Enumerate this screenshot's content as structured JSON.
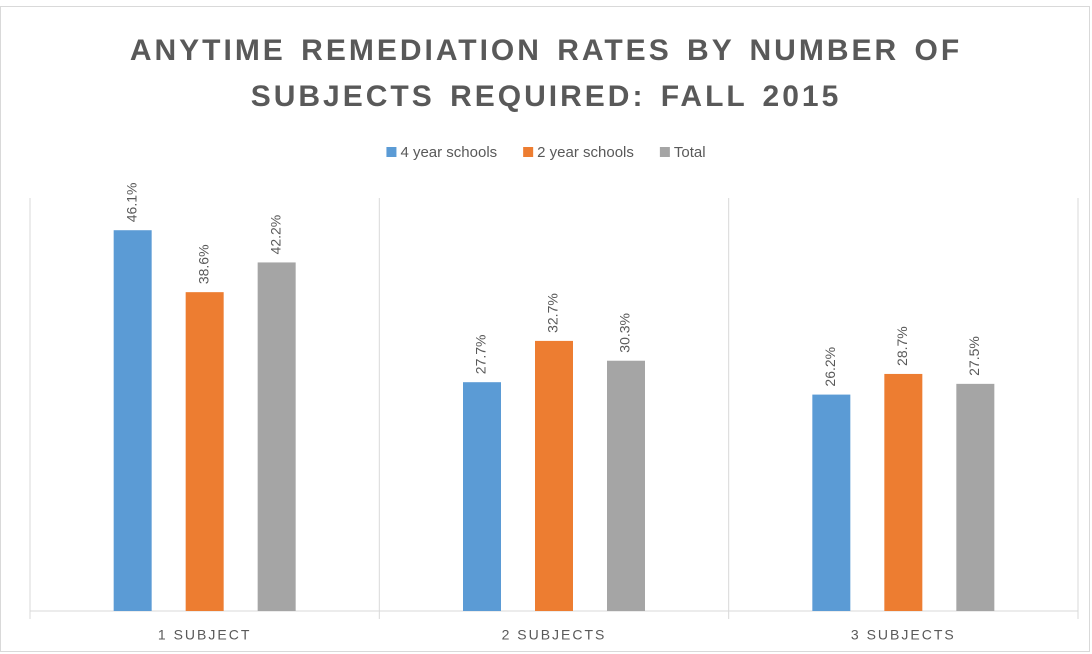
{
  "chart_data": {
    "type": "bar",
    "title": "ANYTIME REMEDIATION RATES BY NUMBER OF SUBJECTS REQUIRED: FALL 2015",
    "categories": [
      "1 SUBJECT",
      "2 SUBJECTS",
      "3 SUBJECTS"
    ],
    "series": [
      {
        "name": "4 year schools",
        "color": "#5b9bd5",
        "values": [
          46.1,
          27.7,
          26.2
        ],
        "value_labels": [
          "46.1%",
          "27.7%",
          "26.2%"
        ]
      },
      {
        "name": "2 year schools",
        "color": "#ed7d31",
        "values": [
          38.6,
          32.7,
          28.7
        ],
        "value_labels": [
          "38.6%",
          "32.7%",
          "28.7%"
        ]
      },
      {
        "name": "Total",
        "color": "#a5a5a5",
        "values": [
          42.2,
          30.3,
          27.5
        ],
        "value_labels": [
          "42.2%",
          "30.3%",
          "27.5%"
        ]
      }
    ],
    "ylim": [
      0,
      50
    ],
    "legend": "top"
  }
}
